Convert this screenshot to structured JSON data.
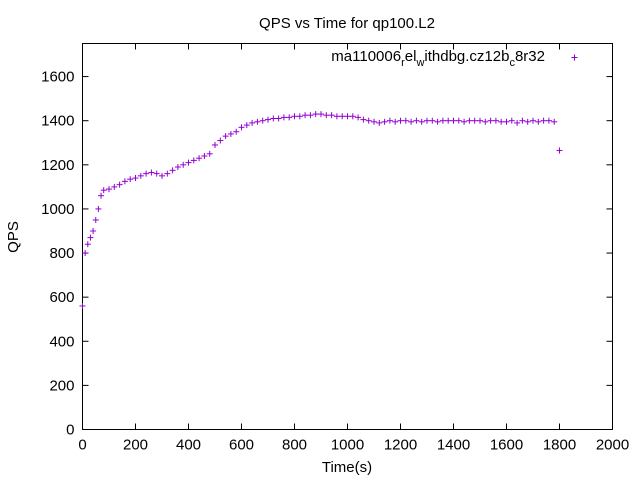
{
  "chart_data": {
    "type": "scatter",
    "title": "QPS vs Time for qp100.L2",
    "xlabel": "Time(s)",
    "ylabel": "QPS",
    "xlim": [
      0,
      2000
    ],
    "ylim": [
      0,
      1750
    ],
    "x_ticks": [
      0,
      200,
      400,
      600,
      800,
      1000,
      1200,
      1400,
      1600,
      1800,
      2000
    ],
    "y_ticks": [
      0,
      200,
      400,
      600,
      800,
      1000,
      1200,
      1400,
      1600
    ],
    "grid": false,
    "legend_position": "top-right",
    "marker": "plus",
    "series": [
      {
        "name": "ma110006_rel_withdbg.cz12b_c8r32",
        "legend_main": "ma110006",
        "legend_sub1": "r",
        "legend_mid1": "el",
        "legend_sub2": "w",
        "legend_mid2": "ithdbg.cz12b",
        "legend_sub3": "c",
        "legend_tail": "8r32",
        "color": "#9400d3",
        "x": [
          0,
          10,
          20,
          30,
          40,
          50,
          60,
          70,
          80,
          100,
          120,
          140,
          160,
          180,
          200,
          220,
          240,
          260,
          280,
          300,
          320,
          340,
          360,
          380,
          400,
          420,
          440,
          460,
          480,
          500,
          520,
          540,
          560,
          580,
          600,
          620,
          640,
          660,
          680,
          700,
          720,
          740,
          760,
          780,
          800,
          820,
          840,
          860,
          880,
          900,
          920,
          940,
          960,
          980,
          1000,
          1020,
          1040,
          1060,
          1080,
          1100,
          1120,
          1140,
          1160,
          1180,
          1200,
          1220,
          1240,
          1260,
          1280,
          1300,
          1320,
          1340,
          1360,
          1380,
          1400,
          1420,
          1440,
          1460,
          1480,
          1500,
          1520,
          1540,
          1560,
          1580,
          1600,
          1620,
          1640,
          1660,
          1680,
          1700,
          1720,
          1740,
          1760,
          1780,
          1800
        ],
        "y": [
          560,
          800,
          840,
          870,
          900,
          950,
          1000,
          1060,
          1085,
          1090,
          1100,
          1110,
          1125,
          1135,
          1140,
          1150,
          1160,
          1165,
          1160,
          1150,
          1160,
          1175,
          1190,
          1200,
          1210,
          1220,
          1230,
          1240,
          1250,
          1290,
          1310,
          1330,
          1340,
          1350,
          1370,
          1380,
          1390,
          1395,
          1400,
          1405,
          1410,
          1410,
          1415,
          1415,
          1420,
          1420,
          1425,
          1425,
          1430,
          1430,
          1425,
          1425,
          1420,
          1420,
          1420,
          1420,
          1415,
          1405,
          1400,
          1395,
          1390,
          1395,
          1400,
          1395,
          1400,
          1400,
          1395,
          1400,
          1395,
          1400,
          1400,
          1395,
          1400,
          1400,
          1400,
          1400,
          1395,
          1400,
          1400,
          1400,
          1395,
          1400,
          1400,
          1395,
          1395,
          1400,
          1390,
          1400,
          1395,
          1400,
          1395,
          1400,
          1400,
          1395,
          1265
        ]
      }
    ]
  }
}
